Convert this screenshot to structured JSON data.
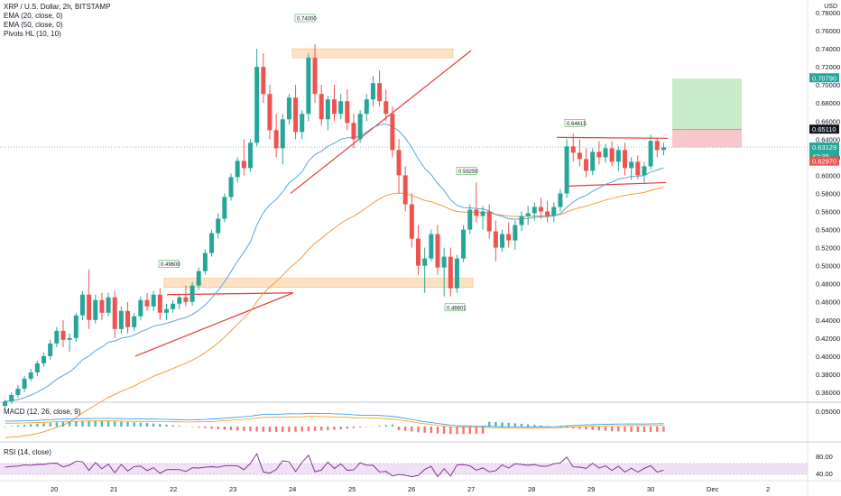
{
  "legend": {
    "title": "XRP / U.S. Dollar, 2h, BITSTAMP",
    "ema20": "EMA (20, close, 0)",
    "ema50": "EMA (50, close, 0)",
    "pivots": "Pivots HL (10, 10)"
  },
  "macd_label": "MACD (12, 26, close, 9)",
  "rsi_label": "RSI (14, close)",
  "currency": "USD",
  "price_badges": [
    {
      "text": "0.70790",
      "color": "#26a69a"
    },
    {
      "text": "0.65110",
      "color": "#131722"
    },
    {
      "text": "0.63129",
      "color": "#26a69a"
    },
    {
      "text": "42:39",
      "color": "#26a69a"
    },
    {
      "text": "0.62970",
      "color": "#ef5350"
    }
  ],
  "pivot_labels": [
    "0.74000",
    "0.49600",
    "0.59250",
    "0.64615",
    "0.46601"
  ],
  "macd_ticks": [
    "0.05000"
  ],
  "rsi_ticks": [
    "80.00",
    "40.00"
  ],
  "colors": {
    "up": "#26a69a",
    "down": "#ef5350",
    "ema20": "#5aa7d8",
    "ema50": "#f39c3b",
    "rsi": "#7e1f8f",
    "macd": "#2196f3",
    "signal": "#ff9800"
  },
  "chart_data": {
    "type": "candlestick",
    "symbol": "XRP / U.S. Dollar",
    "interval": "2h",
    "exchange": "BITSTAMP",
    "y_range": [
      0.35,
      0.78
    ],
    "y_ticks": [
      "0.78000",
      "0.76000",
      "0.74000",
      "0.72000",
      "0.70000",
      "0.68000",
      "0.66000",
      "0.64000",
      "0.62000",
      "0.60000",
      "0.58000",
      "0.56000",
      "0.54000",
      "0.52000",
      "0.50000",
      "0.48000",
      "0.46000",
      "0.44000",
      "0.42000",
      "0.40000",
      "0.38000",
      "0.36000"
    ],
    "x_ticks": [
      "20",
      "21",
      "22",
      "23",
      "24",
      "25",
      "26",
      "27",
      "28",
      "29",
      "30",
      "Dec",
      "2"
    ],
    "candles": [
      [
        0.345,
        0.352,
        0.34,
        0.35
      ],
      [
        0.35,
        0.36,
        0.347,
        0.357
      ],
      [
        0.357,
        0.368,
        0.354,
        0.364
      ],
      [
        0.364,
        0.378,
        0.36,
        0.375
      ],
      [
        0.375,
        0.386,
        0.372,
        0.382
      ],
      [
        0.382,
        0.395,
        0.378,
        0.392
      ],
      [
        0.392,
        0.404,
        0.388,
        0.4
      ],
      [
        0.4,
        0.418,
        0.396,
        0.414
      ],
      [
        0.414,
        0.432,
        0.41,
        0.428
      ],
      [
        0.428,
        0.44,
        0.41,
        0.418
      ],
      [
        0.418,
        0.425,
        0.405,
        0.42
      ],
      [
        0.42,
        0.448,
        0.416,
        0.445
      ],
      [
        0.445,
        0.472,
        0.44,
        0.468
      ],
      [
        0.468,
        0.496,
        0.43,
        0.44
      ],
      [
        0.44,
        0.468,
        0.436,
        0.462
      ],
      [
        0.462,
        0.47,
        0.44,
        0.448
      ],
      [
        0.448,
        0.47,
        0.444,
        0.465
      ],
      [
        0.465,
        0.472,
        0.42,
        0.43
      ],
      [
        0.43,
        0.455,
        0.425,
        0.45
      ],
      [
        0.45,
        0.46,
        0.425,
        0.432
      ],
      [
        0.432,
        0.448,
        0.428,
        0.444
      ],
      [
        0.444,
        0.466,
        0.44,
        0.462
      ],
      [
        0.462,
        0.47,
        0.45,
        0.455
      ],
      [
        0.455,
        0.472,
        0.45,
        0.468
      ],
      [
        0.468,
        0.475,
        0.44,
        0.448
      ],
      [
        0.448,
        0.458,
        0.44,
        0.452
      ],
      [
        0.452,
        0.462,
        0.448,
        0.458
      ],
      [
        0.458,
        0.468,
        0.452,
        0.465
      ],
      [
        0.465,
        0.478,
        0.455,
        0.46
      ],
      [
        0.46,
        0.482,
        0.456,
        0.478
      ],
      [
        0.478,
        0.498,
        0.474,
        0.494
      ],
      [
        0.494,
        0.518,
        0.49,
        0.514
      ],
      [
        0.514,
        0.54,
        0.51,
        0.536
      ],
      [
        0.536,
        0.558,
        0.53,
        0.552
      ],
      [
        0.552,
        0.58,
        0.548,
        0.576
      ],
      [
        0.576,
        0.602,
        0.572,
        0.598
      ],
      [
        0.598,
        0.62,
        0.592,
        0.616
      ],
      [
        0.616,
        0.64,
        0.6,
        0.608
      ],
      [
        0.608,
        0.64,
        0.604,
        0.636
      ],
      [
        0.636,
        0.74,
        0.632,
        0.72
      ],
      [
        0.72,
        0.735,
        0.68,
        0.69
      ],
      [
        0.69,
        0.7,
        0.64,
        0.65
      ],
      [
        0.65,
        0.668,
        0.62,
        0.63
      ],
      [
        0.63,
        0.668,
        0.612,
        0.662
      ],
      [
        0.662,
        0.69,
        0.656,
        0.686
      ],
      [
        0.686,
        0.7,
        0.64,
        0.648
      ],
      [
        0.648,
        0.672,
        0.64,
        0.668
      ],
      [
        0.668,
        0.735,
        0.66,
        0.73
      ],
      [
        0.73,
        0.745,
        0.68,
        0.69
      ],
      [
        0.69,
        0.7,
        0.655,
        0.662
      ],
      [
        0.662,
        0.688,
        0.65,
        0.684
      ],
      [
        0.684,
        0.7,
        0.66,
        0.668
      ],
      [
        0.668,
        0.69,
        0.662,
        0.682
      ],
      [
        0.682,
        0.695,
        0.65,
        0.658
      ],
      [
        0.658,
        0.668,
        0.63,
        0.64
      ],
      [
        0.64,
        0.672,
        0.636,
        0.668
      ],
      [
        0.668,
        0.69,
        0.66,
        0.684
      ],
      [
        0.684,
        0.71,
        0.676,
        0.702
      ],
      [
        0.702,
        0.716,
        0.676,
        0.682
      ],
      [
        0.682,
        0.695,
        0.66,
        0.668
      ],
      [
        0.668,
        0.676,
        0.62,
        0.628
      ],
      [
        0.628,
        0.64,
        0.58,
        0.6
      ],
      [
        0.6,
        0.61,
        0.56,
        0.568
      ],
      [
        0.568,
        0.58,
        0.52,
        0.53
      ],
      [
        0.53,
        0.545,
        0.49,
        0.5
      ],
      [
        0.5,
        0.52,
        0.47,
        0.508
      ],
      [
        0.508,
        0.54,
        0.505,
        0.535
      ],
      [
        0.535,
        0.545,
        0.49,
        0.498
      ],
      [
        0.498,
        0.52,
        0.466,
        0.51
      ],
      [
        0.51,
        0.52,
        0.466,
        0.475
      ],
      [
        0.475,
        0.512,
        0.47,
        0.508
      ],
      [
        0.508,
        0.545,
        0.504,
        0.54
      ],
      [
        0.54,
        0.568,
        0.535,
        0.562
      ],
      [
        0.562,
        0.592,
        0.548,
        0.555
      ],
      [
        0.555,
        0.566,
        0.54,
        0.56
      ],
      [
        0.56,
        0.568,
        0.53,
        0.538
      ],
      [
        0.538,
        0.55,
        0.505,
        0.52
      ],
      [
        0.52,
        0.54,
        0.515,
        0.535
      ],
      [
        0.535,
        0.548,
        0.52,
        0.528
      ],
      [
        0.528,
        0.55,
        0.518,
        0.545
      ],
      [
        0.545,
        0.56,
        0.538,
        0.555
      ],
      [
        0.555,
        0.566,
        0.545,
        0.558
      ],
      [
        0.558,
        0.57,
        0.55,
        0.565
      ],
      [
        0.565,
        0.575,
        0.552,
        0.56
      ],
      [
        0.56,
        0.572,
        0.548,
        0.555
      ],
      [
        0.555,
        0.57,
        0.548,
        0.565
      ],
      [
        0.565,
        0.585,
        0.56,
        0.58
      ],
      [
        0.58,
        0.64,
        0.575,
        0.632
      ],
      [
        0.632,
        0.646,
        0.615,
        0.625
      ],
      [
        0.625,
        0.64,
        0.61,
        0.618
      ],
      [
        0.618,
        0.63,
        0.598,
        0.605
      ],
      [
        0.605,
        0.63,
        0.6,
        0.626
      ],
      [
        0.626,
        0.638,
        0.612,
        0.62
      ],
      [
        0.62,
        0.635,
        0.614,
        0.63
      ],
      [
        0.63,
        0.638,
        0.61,
        0.615
      ],
      [
        0.615,
        0.632,
        0.605,
        0.628
      ],
      [
        0.628,
        0.636,
        0.6,
        0.608
      ],
      [
        0.608,
        0.62,
        0.595,
        0.615
      ],
      [
        0.615,
        0.622,
        0.596,
        0.6
      ],
      [
        0.6,
        0.615,
        0.592,
        0.61
      ],
      [
        0.61,
        0.645,
        0.606,
        0.638
      ],
      [
        0.638,
        0.642,
        0.62,
        0.628
      ],
      [
        0.628,
        0.636,
        0.622,
        0.631
      ]
    ],
    "annotations": {
      "resistance_zone_top": [
        0.745,
        0.74
      ],
      "support_zone_mid": [
        0.486,
        0.476
      ],
      "support_zone_low": [
        0.486,
        0.476
      ],
      "position_target": [
        0.707,
        0.651
      ],
      "position_stop": [
        0.651,
        0.631
      ]
    }
  }
}
